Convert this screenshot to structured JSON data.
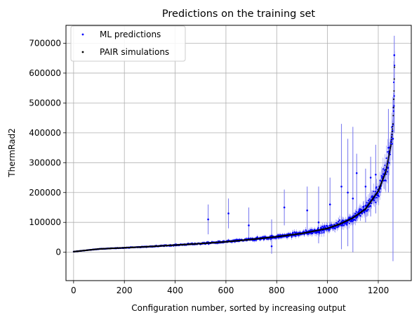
{
  "chart_data": {
    "type": "scatter",
    "title": "Predictions on the training set",
    "xlabel": "Configuration number, sorted by increasing output",
    "ylabel": "ThermRad2",
    "xlim": [
      -30,
      1330
    ],
    "ylim": [
      -95000,
      760000
    ],
    "xticks": [
      0,
      200,
      400,
      600,
      800,
      1000,
      1200
    ],
    "yticks": [
      0,
      100000,
      200000,
      300000,
      400000,
      500000,
      600000,
      700000
    ],
    "grid": true,
    "legend_position": "upper-left",
    "n_points": 1265,
    "curve_anchors": {
      "x": [
        0,
        100,
        200,
        300,
        400,
        500,
        600,
        700,
        800,
        900,
        1000,
        1050,
        1100,
        1150,
        1200,
        1230,
        1250,
        1258,
        1262,
        1265
      ],
      "y": [
        2000,
        11000,
        15000,
        19000,
        24000,
        29000,
        35000,
        43000,
        52000,
        63000,
        80000,
        95000,
        115000,
        145000,
        205000,
        270000,
        360000,
        430000,
        540000,
        660000
      ]
    },
    "series": [
      {
        "name": "ML predictions",
        "color": "#0000ff",
        "marker": "dot"
      },
      {
        "name": "PAIR simulations",
        "color": "#000000",
        "marker": "dot"
      }
    ],
    "error_bar_color": "#8080f0",
    "outliers": [
      {
        "x": 530,
        "y": 110000,
        "lo": 60000,
        "hi": 160000
      },
      {
        "x": 610,
        "y": 130000,
        "lo": 80000,
        "hi": 180000
      },
      {
        "x": 690,
        "y": 90000,
        "lo": 40000,
        "hi": 150000
      },
      {
        "x": 780,
        "y": 20000,
        "lo": -5000,
        "hi": 110000
      },
      {
        "x": 830,
        "y": 150000,
        "lo": 90000,
        "hi": 210000
      },
      {
        "x": 920,
        "y": 140000,
        "lo": 60000,
        "hi": 220000
      },
      {
        "x": 965,
        "y": 100000,
        "lo": 30000,
        "hi": 220000
      },
      {
        "x": 1010,
        "y": 160000,
        "lo": 70000,
        "hi": 250000
      },
      {
        "x": 1055,
        "y": 220000,
        "lo": 10000,
        "hi": 430000
      },
      {
        "x": 1080,
        "y": 200000,
        "lo": 20000,
        "hi": 380000
      },
      {
        "x": 1100,
        "y": 180000,
        "lo": 0,
        "hi": 420000
      },
      {
        "x": 1115,
        "y": 265000,
        "lo": 120000,
        "hi": 330000
      },
      {
        "x": 1150,
        "y": 220000,
        "lo": 100000,
        "hi": 280000
      },
      {
        "x": 1170,
        "y": 250000,
        "lo": 120000,
        "hi": 320000
      },
      {
        "x": 1190,
        "y": 260000,
        "lo": 130000,
        "hi": 360000
      },
      {
        "x": 1240,
        "y": 350000,
        "lo": 200000,
        "hi": 480000
      },
      {
        "x": 1258,
        "y": 380000,
        "lo": -30000,
        "hi": 520000
      },
      {
        "x": 1263,
        "y": 660000,
        "lo": 400000,
        "hi": 725000
      }
    ]
  }
}
